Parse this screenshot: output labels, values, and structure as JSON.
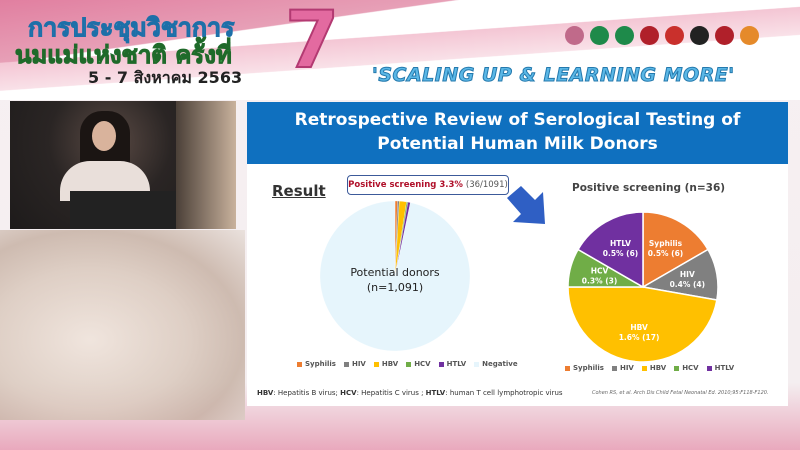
{
  "banner": {
    "event_title_line1": "การประชุมวิชาการ",
    "event_title_line2": "นมแม่แห่งชาติ ครั้งที่",
    "event_number": "7",
    "event_dates": "5 - 7 สิงหาคม 2563",
    "slogan": "'SCALING UP & LEARNING MORE'",
    "logo_colors": [
      "#c06a8a",
      "#1e8a4a",
      "#1e8a4a",
      "#b0202a",
      "#c9302c",
      "#222222",
      "#b0202a",
      "#e58a2a"
    ]
  },
  "slide": {
    "title_line1": "Retrospective Review of Serological Testing of",
    "title_line2": "Potential Human Milk Donors",
    "result_heading": "Result",
    "callout_bold": "Positive screening 3.3%",
    "callout_count": "(36/1091)",
    "footnote": {
      "items": [
        {
          "abbr": "HBV",
          "text": ": Hepatitis B virus; "
        },
        {
          "abbr": "HCV",
          "text": ": Hepatitis C virus ; "
        },
        {
          "abbr": "HTLV",
          "text": ": human T cell lymphotropic virus"
        }
      ]
    },
    "citation": "Cohen RS, et al. Arch Dis Child Fetal Neonatal Ed. 2010;95:F118-F120."
  },
  "chart_data": [
    {
      "type": "pie",
      "title": "",
      "center_label_line1": "Potential donors",
      "center_label_line2": "(n=1,091)",
      "categories": [
        "Syphilis",
        "HIV",
        "HBV",
        "HCV",
        "HTLV",
        "Negative"
      ],
      "values": [
        6,
        4,
        17,
        3,
        6,
        1055
      ],
      "colors": [
        "#ed7d31",
        "#808080",
        "#ffc000",
        "#70ad47",
        "#7030a0",
        "#e6f5fc"
      ],
      "legend_placement": "bottom"
    },
    {
      "type": "pie",
      "title": "Positive screening (n=36)",
      "categories": [
        "Syphilis",
        "HIV",
        "HBV",
        "HCV",
        "HTLV"
      ],
      "values": [
        6,
        4,
        17,
        3,
        6
      ],
      "data_labels": [
        "0.5% (6)",
        "0.4% (4)",
        "1.6% (17)",
        "0.3% (3)",
        "0.5% (6)"
      ],
      "colors": [
        "#ed7d31",
        "#808080",
        "#ffc000",
        "#70ad47",
        "#7030a0"
      ],
      "legend_placement": "bottom"
    }
  ]
}
